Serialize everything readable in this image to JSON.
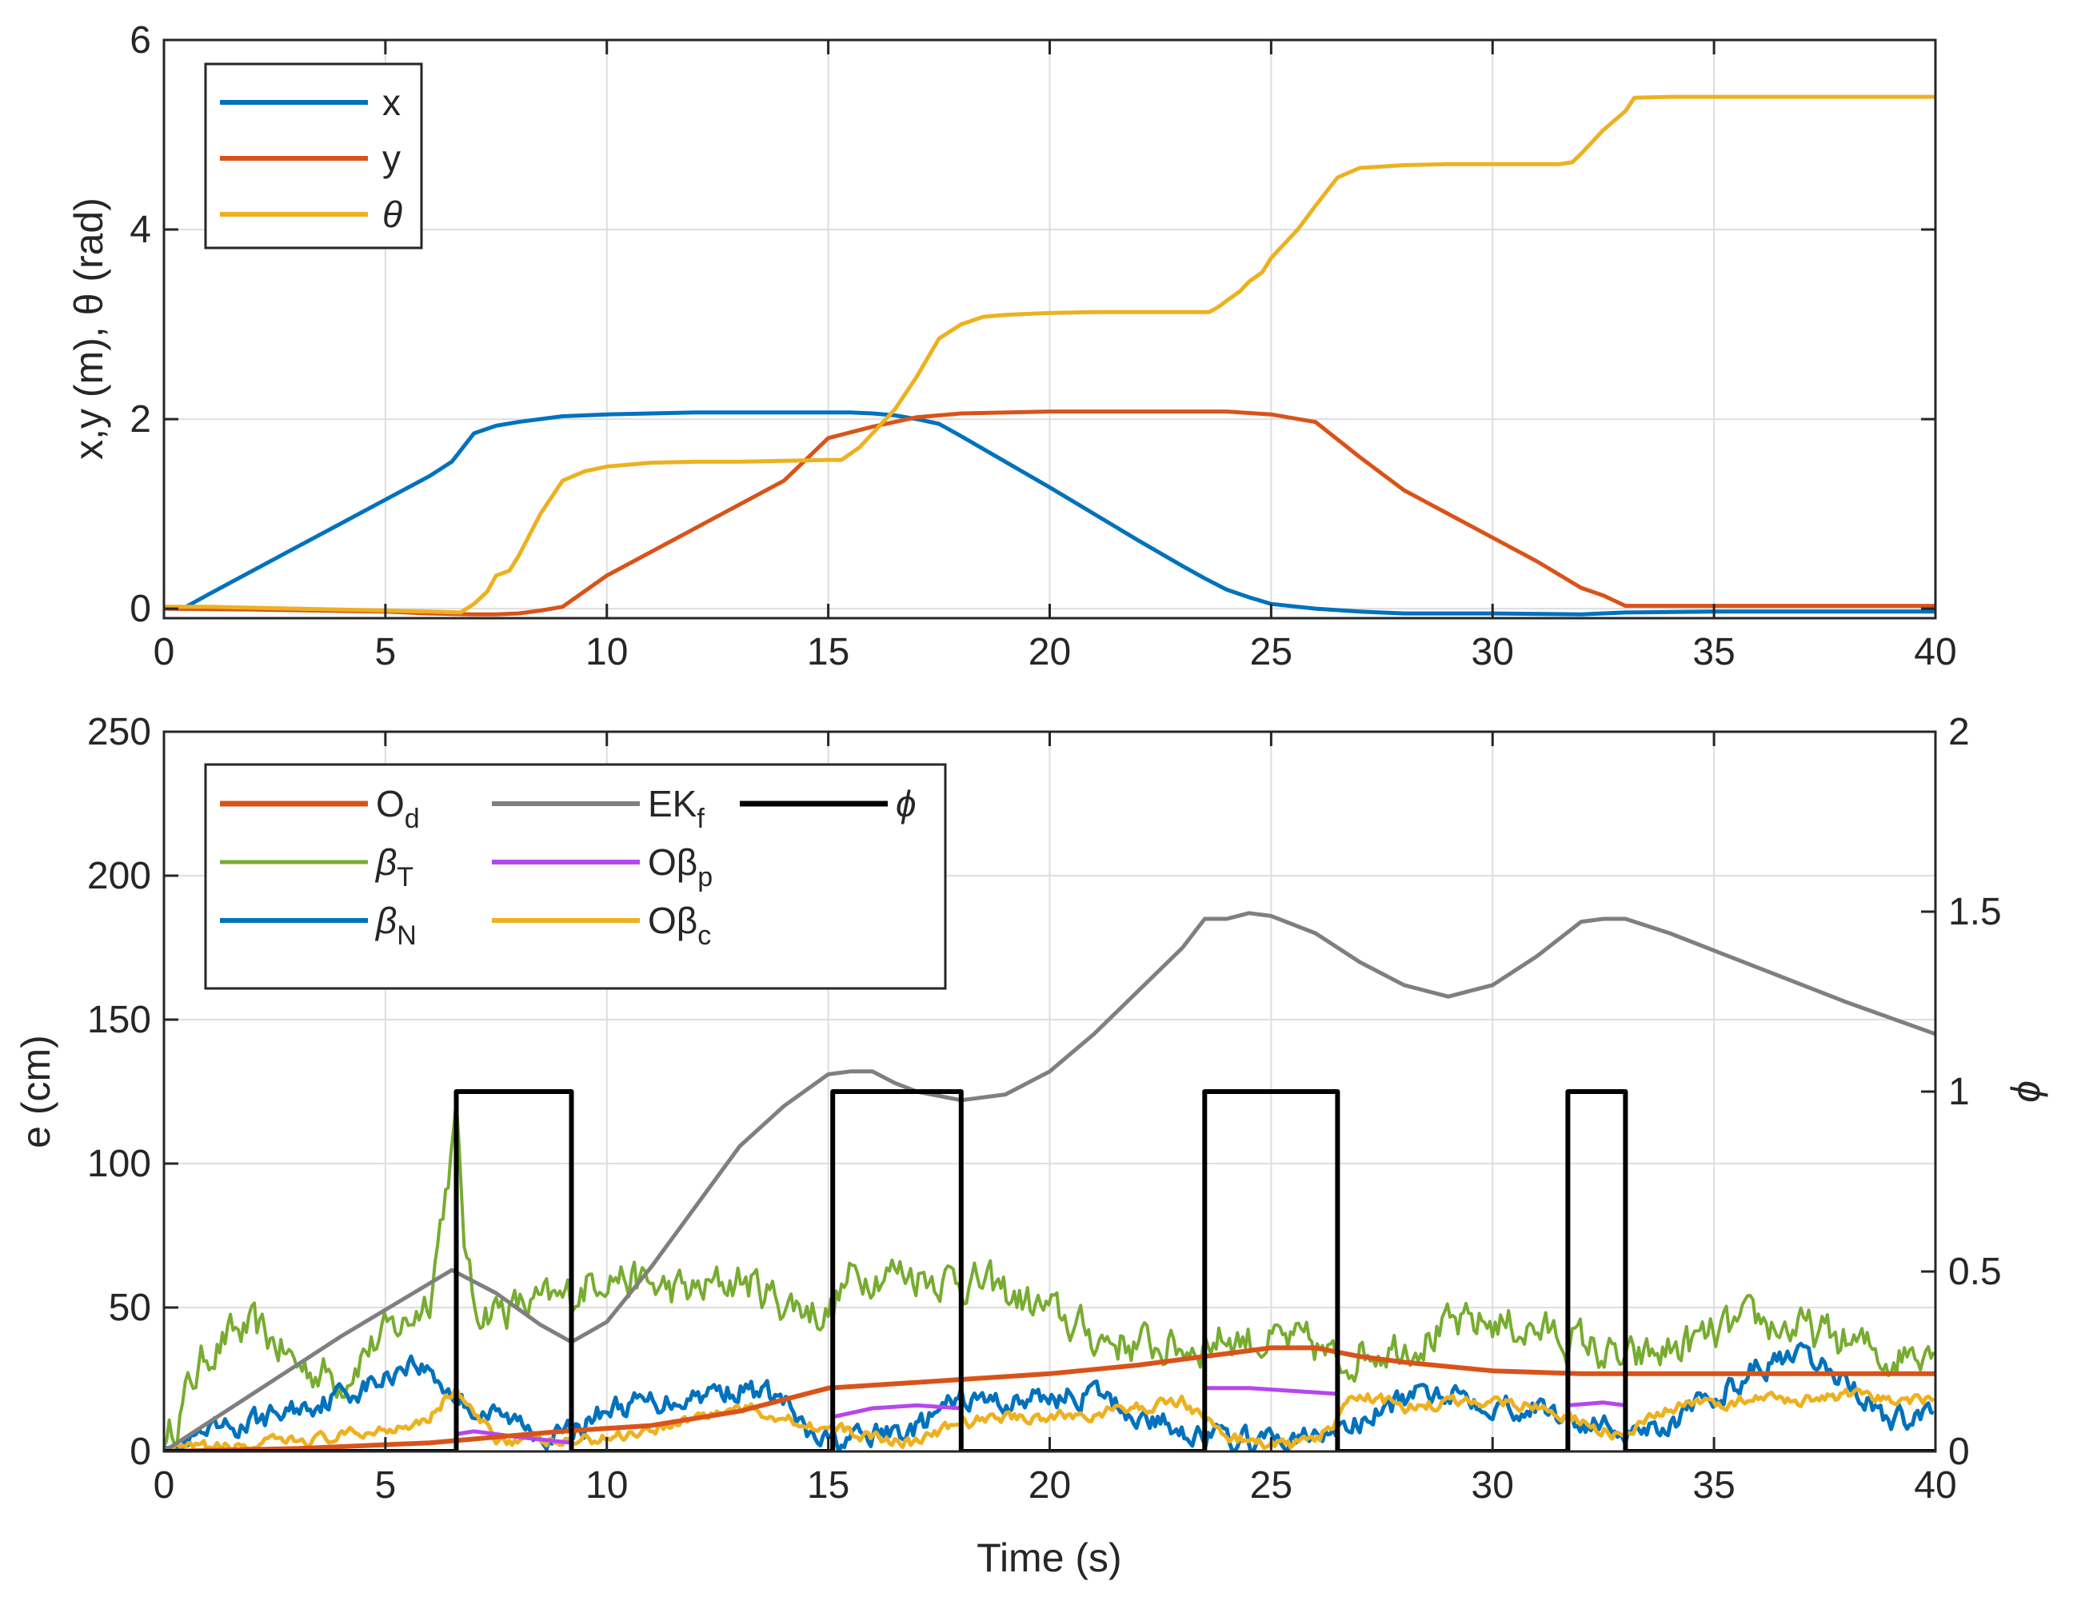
{
  "chart_data": [
    {
      "type": "line",
      "id": "top",
      "title": "",
      "xlabel": "",
      "ylabel": "x,y (m), θ (rad)",
      "xlim": [
        0,
        40
      ],
      "ylim": [
        -0.1,
        6
      ],
      "grid": true,
      "xticks": [
        "0",
        "5",
        "10",
        "15",
        "20",
        "25",
        "30",
        "35",
        "40"
      ],
      "yticks": [
        "0",
        "2",
        "4",
        "6"
      ],
      "legend_position": "top-left",
      "series": [
        {
          "name": "x",
          "color": "#0072BD",
          "x": [
            0,
            0.5,
            1,
            2,
            3,
            4,
            5,
            6,
            6.5,
            7,
            7.5,
            8,
            9,
            10,
            11,
            12,
            13,
            14,
            15,
            15.5,
            16,
            16.5,
            17,
            17.5,
            18,
            19,
            20,
            21,
            22,
            23,
            23.5,
            24,
            24.5,
            25,
            26,
            27,
            28,
            30,
            32,
            33,
            35,
            40
          ],
          "y": [
            0,
            0.02,
            0.15,
            0.4,
            0.65,
            0.9,
            1.15,
            1.4,
            1.55,
            1.85,
            1.93,
            1.97,
            2.03,
            2.05,
            2.06,
            2.07,
            2.07,
            2.07,
            2.07,
            2.07,
            2.06,
            2.04,
            2.0,
            1.95,
            1.82,
            1.55,
            1.28,
            1.0,
            0.72,
            0.45,
            0.32,
            0.2,
            0.12,
            0.05,
            0.0,
            -0.03,
            -0.05,
            -0.05,
            -0.06,
            -0.04,
            -0.03,
            -0.03
          ]
        },
        {
          "name": "y",
          "color": "#D95319",
          "x": [
            0,
            2,
            5,
            6,
            7,
            7.5,
            8,
            8.5,
            9,
            10,
            12,
            14,
            15,
            16,
            16.5,
            17,
            17.5,
            18,
            20,
            22,
            24,
            25,
            26,
            27,
            28,
            30,
            31,
            32,
            32.5,
            33,
            35,
            40
          ],
          "y": [
            0,
            -0.01,
            -0.03,
            -0.05,
            -0.06,
            -0.06,
            -0.05,
            -0.02,
            0.02,
            0.35,
            0.85,
            1.35,
            1.8,
            1.92,
            1.97,
            2.02,
            2.04,
            2.06,
            2.08,
            2.08,
            2.08,
            2.05,
            1.97,
            1.6,
            1.25,
            0.75,
            0.5,
            0.22,
            0.14,
            0.03,
            0.03,
            0.03
          ]
        },
        {
          "name": "θ",
          "color": "#EDB120",
          "x": [
            0,
            1,
            2,
            3,
            4,
            5,
            6,
            6.7,
            7,
            7.3,
            7.5,
            7.8,
            8,
            8.5,
            9,
            9.5,
            10,
            11,
            12,
            13,
            14,
            15,
            15.3,
            15.7,
            16,
            16.5,
            17,
            17.5,
            18,
            18.5,
            19,
            20,
            21,
            22,
            23,
            23.6,
            23.8,
            24,
            24.3,
            24.5,
            24.8,
            25,
            25.3,
            25.6,
            26,
            26.5,
            27,
            28,
            29,
            30,
            31,
            31.5,
            31.8,
            32,
            32.3,
            32.5,
            33,
            33.2,
            34,
            35,
            36,
            38,
            40
          ],
          "y": [
            0.02,
            0.02,
            0.01,
            0.0,
            -0.01,
            -0.02,
            -0.03,
            -0.04,
            0.05,
            0.18,
            0.35,
            0.4,
            0.55,
            1.0,
            1.35,
            1.45,
            1.5,
            1.54,
            1.55,
            1.55,
            1.56,
            1.57,
            1.57,
            1.7,
            1.85,
            2.1,
            2.45,
            2.85,
            3.0,
            3.08,
            3.1,
            3.12,
            3.13,
            3.13,
            3.13,
            3.13,
            3.18,
            3.25,
            3.35,
            3.45,
            3.55,
            3.7,
            3.85,
            4.0,
            4.25,
            4.55,
            4.65,
            4.68,
            4.69,
            4.69,
            4.69,
            4.69,
            4.71,
            4.8,
            4.95,
            5.05,
            5.25,
            5.39,
            5.4,
            5.4,
            5.4,
            5.4,
            5.4
          ]
        }
      ]
    },
    {
      "type": "line",
      "id": "bottom",
      "title": "",
      "xlabel": "Time (s)",
      "ylabel": "e (cm)",
      "y2label": "ϕ",
      "xlim": [
        0,
        40
      ],
      "ylim": [
        0,
        250
      ],
      "y2lim": [
        0,
        2
      ],
      "grid": true,
      "xticks": [
        "0",
        "5",
        "10",
        "15",
        "20",
        "25",
        "30",
        "35",
        "40"
      ],
      "yticks": [
        "0",
        "50",
        "100",
        "150",
        "200",
        "250"
      ],
      "y2ticks": [
        "0",
        "0.5",
        "1",
        "1.5",
        "2"
      ],
      "legend_position": "top-left",
      "series": [
        {
          "name": "O",
          "sub": "d",
          "italic": false,
          "color": "#D95319",
          "width": 6,
          "x": [
            0,
            3,
            6,
            9,
            11,
            13,
            15,
            18,
            20,
            22,
            24,
            25,
            26,
            27,
            28,
            30,
            32,
            35,
            40
          ],
          "y": [
            0,
            1,
            3,
            7,
            9,
            14,
            22,
            25,
            27,
            30,
            34,
            36,
            36,
            33,
            31,
            28,
            27,
            27,
            27
          ]
        },
        {
          "name": "EK",
          "sub": "f",
          "italic": false,
          "color": "#7F7F7F",
          "width": 5,
          "x": [
            0,
            2,
            4,
            6.5,
            7.5,
            8.5,
            9.2,
            10,
            11,
            12,
            13,
            14,
            15,
            15.5,
            16,
            16.5,
            17,
            18,
            19,
            20,
            21,
            22,
            23,
            23.5,
            24,
            24.5,
            25,
            26,
            27,
            28,
            29,
            30,
            31,
            32,
            32.5,
            33,
            34,
            36,
            38,
            40
          ],
          "y": [
            0,
            20,
            40,
            63,
            55,
            44,
            38,
            45,
            64,
            85,
            106,
            120,
            131,
            132,
            132,
            128,
            125,
            122,
            124,
            132,
            145,
            160,
            175,
            185,
            185,
            187,
            186,
            180,
            170,
            162,
            158,
            162,
            172,
            184,
            185,
            185,
            180,
            168,
            156,
            145
          ]
        },
        {
          "name": "ϕ",
          "sub": "",
          "italic": true,
          "color": "#000000",
          "width": 6,
          "axis": "right",
          "x": [
            0,
            6.6,
            6.6,
            9.2,
            9.2,
            15.1,
            15.1,
            18.0,
            18.0,
            23.5,
            23.5,
            26.5,
            26.5,
            31.7,
            31.7,
            33.0,
            33.0,
            40
          ],
          "y": [
            0,
            0,
            1,
            1,
            0,
            0,
            1,
            1,
            0,
            0,
            1,
            1,
            0,
            0,
            1,
            1,
            0,
            0
          ]
        },
        {
          "name": "β",
          "sub": "T",
          "italic": true,
          "color": "#77AC30",
          "width": 4,
          "noise": "beta_t",
          "x": [
            0,
            0.5,
            1,
            1.5,
            2,
            2.5,
            3,
            3.5,
            4,
            4.5,
            5,
            5.5,
            6,
            6.3,
            6.6,
            6.8,
            7,
            8,
            9,
            9.5,
            10,
            11,
            12,
            13,
            14,
            15,
            15.5,
            16,
            17,
            18,
            19,
            20,
            21,
            22,
            23,
            24,
            25,
            26,
            26.5,
            27,
            28,
            29,
            30,
            31,
            32,
            33,
            34,
            35,
            36,
            37,
            38,
            39,
            40
          ],
          "y": [
            0,
            20,
            35,
            40,
            42,
            38,
            30,
            28,
            25,
            35,
            40,
            45,
            55,
            85,
            115,
            70,
            50,
            50,
            52,
            58,
            63,
            57,
            55,
            60,
            52,
            48,
            60,
            63,
            62,
            60,
            55,
            48,
            40,
            37,
            36,
            40,
            38,
            36,
            30,
            35,
            38,
            42,
            45,
            42,
            38,
            30,
            35,
            40,
            45,
            42,
            38,
            32,
            40
          ]
        },
        {
          "name": "Oβ",
          "sub": "p",
          "italic": false,
          "color": "#B646F0",
          "width": 5,
          "gaps": true,
          "x": [
            6.6,
            7,
            8,
            9.2,
            null,
            15.1,
            16,
            17,
            18,
            null,
            23.5,
            24.5,
            25.5,
            26.5,
            null,
            31.7,
            32.5,
            33
          ],
          "y": [
            6,
            7,
            5,
            3,
            null,
            12,
            15,
            16,
            15,
            null,
            22,
            22,
            21,
            20,
            null,
            16,
            17,
            16
          ]
        },
        {
          "name": "β",
          "sub": "N",
          "italic": true,
          "color": "#0072BD",
          "width": 5,
          "noise": "beta_n",
          "x": [
            0,
            1,
            2,
            3,
            4,
            5,
            5.5,
            6,
            6.5,
            7,
            7.5,
            8,
            9,
            10,
            11,
            12,
            13,
            14,
            14.5,
            15,
            16,
            17,
            18,
            19,
            20,
            21,
            22,
            23,
            24,
            25,
            26,
            27,
            28,
            29,
            30,
            31,
            32,
            33,
            34,
            35,
            36,
            37,
            38,
            39,
            40
          ],
          "y": [
            0,
            5,
            10,
            15,
            20,
            25,
            32,
            28,
            20,
            15,
            12,
            10,
            5,
            15,
            17,
            20,
            22,
            18,
            5,
            3,
            5,
            8,
            18,
            17,
            19,
            20,
            12,
            8,
            4,
            3,
            5,
            10,
            18,
            22,
            17,
            15,
            10,
            8,
            10,
            18,
            30,
            32,
            25,
            10,
            15
          ]
        },
        {
          "name": "Oβ",
          "sub": "c",
          "italic": false,
          "color": "#EDB120",
          "width": 5,
          "noise": "obeta_c",
          "x": [
            0,
            2,
            4,
            5,
            6,
            6.6,
            7,
            7.5,
            8,
            9,
            10,
            11,
            12,
            13,
            14,
            15,
            16,
            17,
            18,
            19,
            20,
            21,
            22,
            23,
            24,
            25,
            26,
            27,
            28,
            29,
            30,
            31,
            32,
            33,
            34,
            35,
            36,
            37,
            38,
            39,
            40
          ],
          "y": [
            0,
            2,
            5,
            8,
            12,
            22,
            12,
            5,
            4,
            3,
            5,
            8,
            12,
            15,
            12,
            8,
            5,
            3,
            10,
            12,
            12,
            13,
            15,
            18,
            5,
            2,
            3,
            20,
            15,
            17,
            18,
            16,
            10,
            5,
            15,
            17,
            18,
            18,
            19,
            18,
            18
          ]
        }
      ]
    }
  ]
}
